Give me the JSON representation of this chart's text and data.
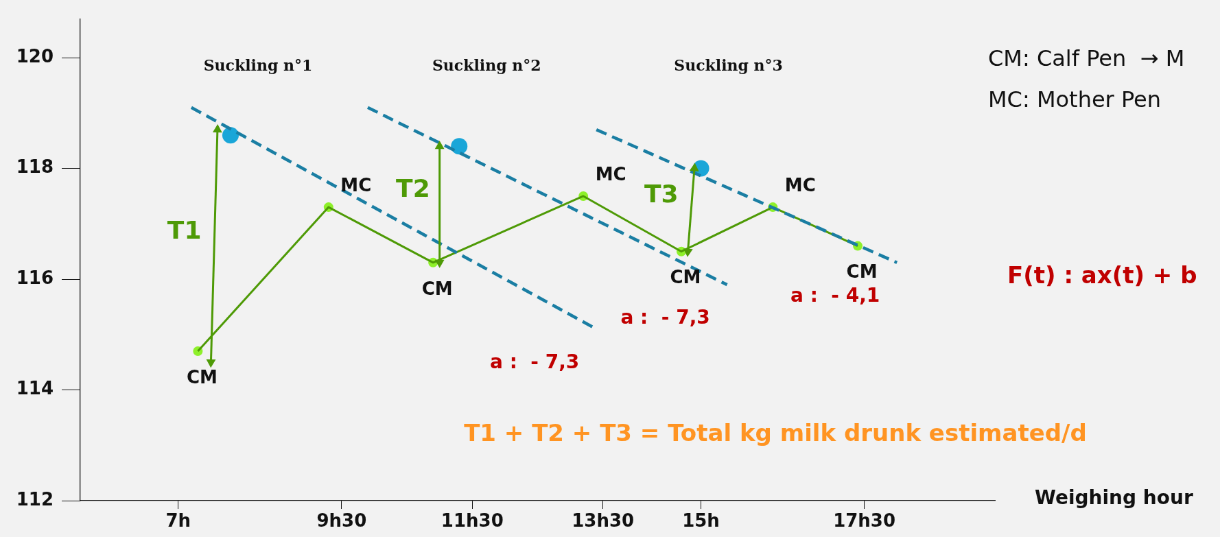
{
  "chart_data": {
    "type": "line",
    "xlabel": "Weighing hour",
    "xlim": [
      5.5,
      19.5
    ],
    "xticks": [
      {
        "value": 7,
        "label": "7h"
      },
      {
        "value": 9.5,
        "label": "9h30"
      },
      {
        "value": 11.5,
        "label": "11h30"
      },
      {
        "value": 13.5,
        "label": "13h30"
      },
      {
        "value": 15,
        "label": "15h"
      },
      {
        "value": 17.5,
        "label": "17h30"
      }
    ],
    "ylim": [
      112,
      120.7
    ],
    "yticks": [
      112,
      114,
      116,
      118,
      120
    ],
    "series": [
      {
        "color": "#1a7ea3",
        "line_style": "dashed",
        "marker": "none",
        "x": [
          7.2,
          13.4
        ],
        "values": [
          119.1,
          115.1
        ]
      },
      {
        "color": "#1a7ea3",
        "line_style": "dashed",
        "marker": "none",
        "x": [
          9.9,
          15.4
        ],
        "values": [
          119.1,
          115.9
        ]
      },
      {
        "color": "#1a7ea3",
        "line_style": "dashed",
        "marker": "none",
        "x": [
          13.4,
          18.0
        ],
        "values": [
          118.7,
          116.3
        ]
      },
      {
        "color": "#4e9a06",
        "marker": "none",
        "x": [
          7.3,
          9.3,
          10.9,
          13.2,
          14.7,
          16.1,
          17.4
        ],
        "values": [
          114.7,
          117.3,
          116.3,
          117.5,
          116.5,
          117.3,
          116.6
        ]
      },
      {
        "type": "scatter",
        "color": "#8ef02a",
        "marker": "circle",
        "x": [
          7.3,
          9.3,
          10.9,
          13.2,
          14.7,
          16.1,
          17.4
        ],
        "values": [
          114.7,
          117.3,
          116.3,
          117.5,
          116.5,
          117.3,
          116.6
        ]
      },
      {
        "type": "scatter",
        "color": "#1aa6d8",
        "marker": "circle",
        "x": [
          7.8,
          11.3,
          15.0
        ],
        "values": [
          118.6,
          118.4,
          118.0
        ]
      },
      {
        "color": "#4e9a06",
        "marker": "triangle",
        "x": [
          7.5,
          7.6
        ],
        "values": [
          114.5,
          118.7
        ]
      },
      {
        "color": "#4e9a06",
        "marker": "triangle",
        "x": [
          11.0,
          11.0
        ],
        "values": [
          116.3,
          118.4
        ]
      },
      {
        "color": "#4e9a06",
        "marker": "triangle",
        "x": [
          14.8,
          14.9
        ],
        "values": [
          116.5,
          118.0
        ]
      }
    ],
    "annotations": [
      "Suckling n°1",
      "Suckling n°2",
      "Suckling n°3",
      "T1",
      "T2",
      "T3",
      "CM",
      "MC",
      "CM",
      "MC",
      "CM",
      "MC",
      "CM",
      "a :  - 7,3",
      "a :  - 7,3",
      "a :  - 4,1",
      "CM: Calf Pen  → M",
      "MC: Mother Pen",
      "F(t) : ax(t) + b",
      "T1 + T2 + T3 = Total kg milk drunk estimated/d"
    ]
  }
}
